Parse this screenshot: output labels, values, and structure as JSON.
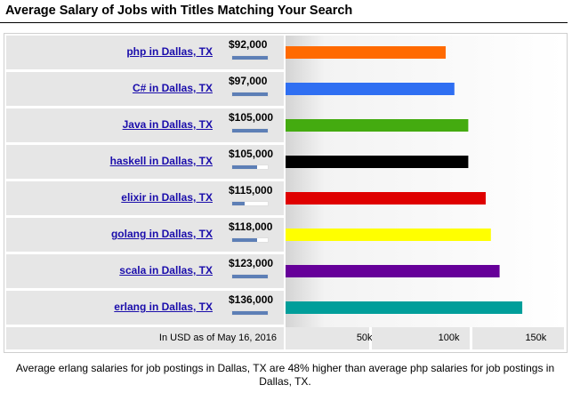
{
  "header": {
    "title": "Average Salary of Jobs with Titles Matching Your Search"
  },
  "chart_data": {
    "type": "bar",
    "orientation": "horizontal",
    "title": "Average Salary of Jobs with Titles Matching Your Search",
    "categories": [
      "php in Dallas, TX",
      "C# in Dallas, TX",
      "Java in Dallas, TX",
      "haskell in Dallas, TX",
      "elixir in Dallas, TX",
      "golang in Dallas, TX",
      "scala in Dallas, TX",
      "erlang in Dallas, TX"
    ],
    "values": [
      92000,
      97000,
      105000,
      105000,
      115000,
      118000,
      123000,
      136000
    ],
    "value_labels": [
      "$92,000",
      "$97,000",
      "$105,000",
      "$105,000",
      "$115,000",
      "$118,000",
      "$123,000",
      "$136,000"
    ],
    "colors": [
      "#ff6a00",
      "#2f6ff2",
      "#44ab10",
      "#000000",
      "#df0000",
      "#ffff00",
      "#660099",
      "#009e9a"
    ],
    "meter_levels": [
      1.0,
      1.0,
      1.0,
      0.7,
      0.35,
      0.7,
      1.0,
      1.0
    ],
    "x_ticks": [
      50000,
      100000,
      150000
    ],
    "x_tick_labels": [
      "50k",
      "100k",
      "150k"
    ],
    "xlim": [
      0,
      160000
    ],
    "grid": false,
    "source_note": "In USD as of May 16, 2016"
  },
  "caption": "Average erlang salaries for job postings in Dallas, TX are 48% higher than average php salaries for job postings in Dallas, TX."
}
